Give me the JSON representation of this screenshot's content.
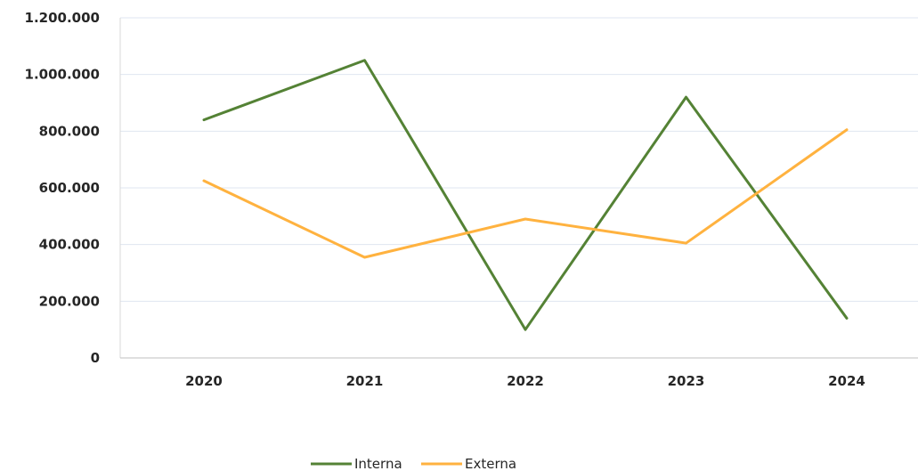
{
  "chart_data": {
    "type": "line",
    "title": "",
    "xlabel": "",
    "ylabel": "",
    "categories": [
      "2020",
      "2021",
      "2022",
      "2023",
      "2024"
    ],
    "ylim": [
      0,
      1200000
    ],
    "yticks": [
      0,
      200000,
      400000,
      600000,
      800000,
      1000000,
      1200000
    ],
    "ytick_labels": [
      "0",
      "200.000",
      "400.000",
      "600.000",
      "800.000",
      "1.000.000",
      "1.200.000"
    ],
    "grid": "horizontal",
    "legend_position": "bottom",
    "series": [
      {
        "name": "Interna",
        "color": "#548235",
        "values": [
          840000,
          1050000,
          100000,
          920000,
          140000
        ]
      },
      {
        "name": "Externa",
        "color": "#FFB23F",
        "values": [
          625000,
          355000,
          490000,
          405000,
          805000
        ]
      }
    ]
  }
}
